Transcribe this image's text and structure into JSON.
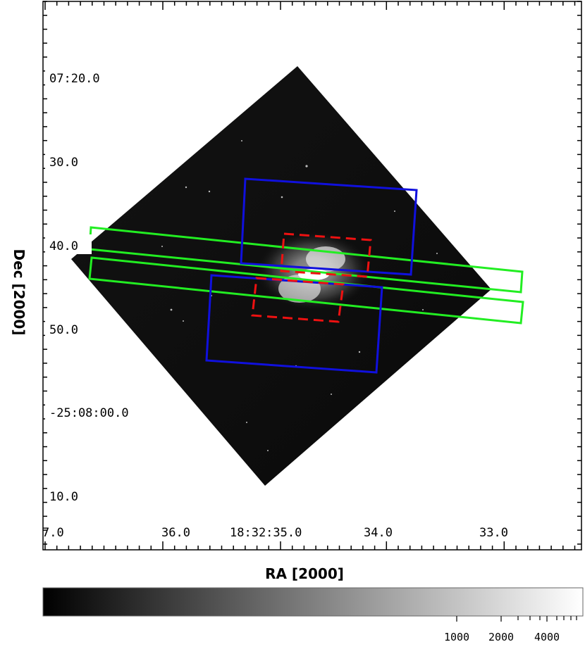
{
  "axes": {
    "x_title": "RA [2000]",
    "y_title": "Dec [2000]",
    "x_ticks": [
      "7.0",
      "36.0",
      "18:32:35.0",
      "34.0",
      "33.0"
    ],
    "y_ticks": [
      "07:20.0",
      "30.0",
      "40.0",
      "50.0",
      "-25:08:00.0",
      "10.0"
    ]
  },
  "colorbar": {
    "labels": [
      "1000",
      "2000",
      "4000"
    ]
  },
  "colors": {
    "green_slits": "#22ee22",
    "blue_fields": "#1010dd",
    "red_field": "#ee1111",
    "image_bg": "#0a0a0a"
  }
}
